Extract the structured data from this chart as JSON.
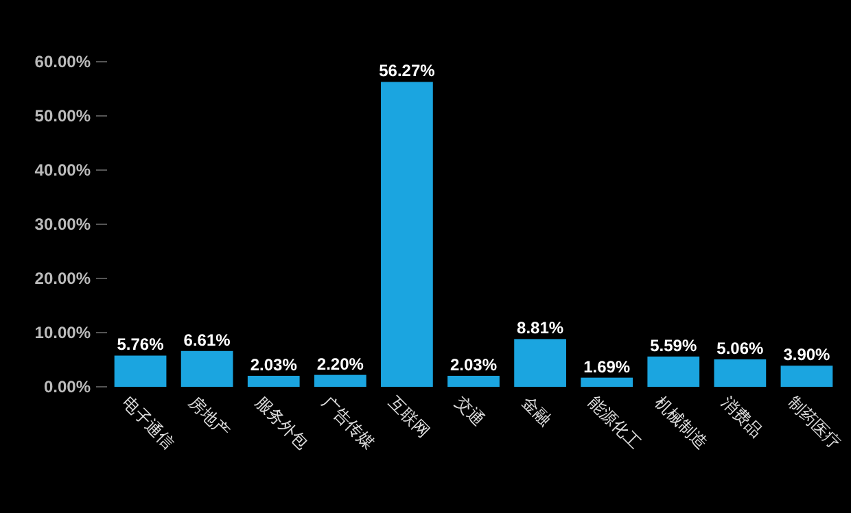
{
  "chart_data": {
    "type": "bar",
    "categories": [
      "电子通信",
      "房地产",
      "服务外包",
      "广告传媒",
      "互联网",
      "交通",
      "金融",
      "能源化工",
      "机械制造",
      "消费品",
      "制药医疗"
    ],
    "values": [
      5.76,
      6.61,
      2.03,
      2.2,
      56.27,
      2.03,
      8.81,
      1.69,
      5.59,
      5.06,
      3.9
    ],
    "value_labels": [
      "5.76%",
      "6.61%",
      "2.03%",
      "2.20%",
      "56.27%",
      "2.03%",
      "8.81%",
      "1.69%",
      "5.59%",
      "5.06%",
      "3.90%"
    ],
    "color": "#1ba5e0",
    "ylim": [
      0,
      60
    ],
    "yticks": [
      {
        "value": 0,
        "label": "0.00%"
      },
      {
        "value": 10,
        "label": "10.00%"
      },
      {
        "value": 20,
        "label": "20.00%"
      },
      {
        "value": 30,
        "label": "30.00%"
      },
      {
        "value": 40,
        "label": "40.00%"
      },
      {
        "value": 50,
        "label": "50.00%"
      },
      {
        "value": 60,
        "label": "60.00%"
      }
    ],
    "data_labels": false
  }
}
